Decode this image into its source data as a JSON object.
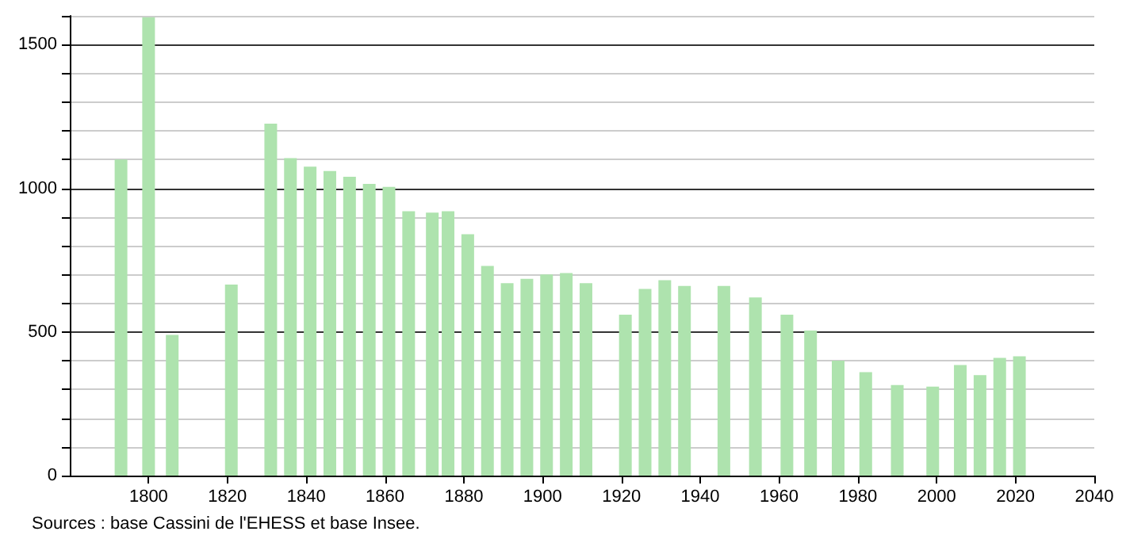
{
  "chart_data": {
    "type": "bar",
    "x": [
      1793,
      1800,
      1806,
      1821,
      1831,
      1836,
      1841,
      1846,
      1851,
      1856,
      1861,
      1866,
      1872,
      1876,
      1881,
      1886,
      1891,
      1896,
      1901,
      1906,
      1911,
      1921,
      1926,
      1931,
      1936,
      1946,
      1954,
      1962,
      1968,
      1975,
      1982,
      1990,
      1999,
      2006,
      2011,
      2016,
      2021
    ],
    "values": [
      1100,
      1595,
      490,
      665,
      1225,
      1105,
      1075,
      1060,
      1040,
      1015,
      1005,
      920,
      915,
      920,
      840,
      730,
      670,
      685,
      700,
      705,
      670,
      560,
      650,
      680,
      660,
      660,
      620,
      560,
      505,
      400,
      360,
      315,
      310,
      385,
      350,
      410,
      415
    ],
    "color": "#aee3ae",
    "xlim": [
      1780,
      2040
    ],
    "xticks": [
      1800,
      1820,
      1840,
      1860,
      1880,
      1900,
      1920,
      1940,
      1960,
      1980,
      2000,
      2020,
      2040
    ],
    "ylim": [
      0,
      1600
    ],
    "yticks": [
      0,
      {
        "value": 100,
        "label": null
      },
      {
        "value": 200,
        "label": null
      },
      {
        "value": 300,
        "label": null
      },
      {
        "value": 400,
        "label": null
      },
      500,
      {
        "value": 600,
        "label": null
      },
      {
        "value": 700,
        "label": null
      },
      {
        "value": 800,
        "label": null
      },
      {
        "value": 900,
        "label": null
      },
      1000,
      {
        "value": 1100,
        "label": null
      },
      {
        "value": 1200,
        "label": null
      },
      {
        "value": 1300,
        "label": null
      },
      {
        "value": 1400,
        "label": null
      },
      1500,
      {
        "value": 1600,
        "label": null
      }
    ],
    "grid": "y",
    "annotations": [
      "Sources : base Cassini de l'EHESS et base Insee."
    ]
  }
}
